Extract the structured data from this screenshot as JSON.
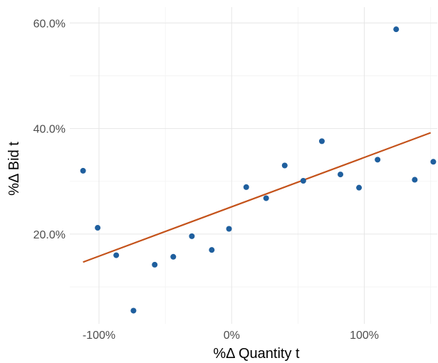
{
  "chart_data": {
    "type": "scatter",
    "title": "",
    "xlabel": "%Δ Quantity t",
    "ylabel": "%Δ Bid t",
    "xlim": [
      -122,
      155
    ],
    "ylim": [
      3,
      63
    ],
    "x_ticks": [
      {
        "value": -100,
        "label": "-100%"
      },
      {
        "value": 0,
        "label": "0%"
      },
      {
        "value": 100,
        "label": "100%"
      }
    ],
    "x_minor": [
      -50,
      50,
      150
    ],
    "y_ticks": [
      {
        "value": 20,
        "label": "20.0%"
      },
      {
        "value": 40,
        "label": "40.0%"
      },
      {
        "value": 60,
        "label": "60.0%"
      }
    ],
    "y_minor": [
      10,
      30,
      50
    ],
    "grid": true,
    "legend": "none",
    "point_color": "#1f5f9e",
    "line_color": "#c4521a",
    "points": [
      {
        "x": -112,
        "y": 32.0
      },
      {
        "x": -101,
        "y": 21.2
      },
      {
        "x": -87,
        "y": 16.0
      },
      {
        "x": -74,
        "y": 5.5
      },
      {
        "x": -58,
        "y": 14.2
      },
      {
        "x": -44,
        "y": 15.7
      },
      {
        "x": -30,
        "y": 19.6
      },
      {
        "x": -15,
        "y": 17.0
      },
      {
        "x": -2,
        "y": 21.0
      },
      {
        "x": 11,
        "y": 28.9
      },
      {
        "x": 26,
        "y": 26.8
      },
      {
        "x": 40,
        "y": 33.0
      },
      {
        "x": 54,
        "y": 30.1
      },
      {
        "x": 68,
        "y": 37.6
      },
      {
        "x": 82,
        "y": 31.3
      },
      {
        "x": 96,
        "y": 28.8
      },
      {
        "x": 110,
        "y": 34.1
      },
      {
        "x": 124,
        "y": 58.8
      },
      {
        "x": 138,
        "y": 30.3
      },
      {
        "x": 152,
        "y": 33.7
      }
    ],
    "fit_line": {
      "x": [
        -112,
        150
      ],
      "y": [
        14.7,
        39.2
      ]
    }
  }
}
